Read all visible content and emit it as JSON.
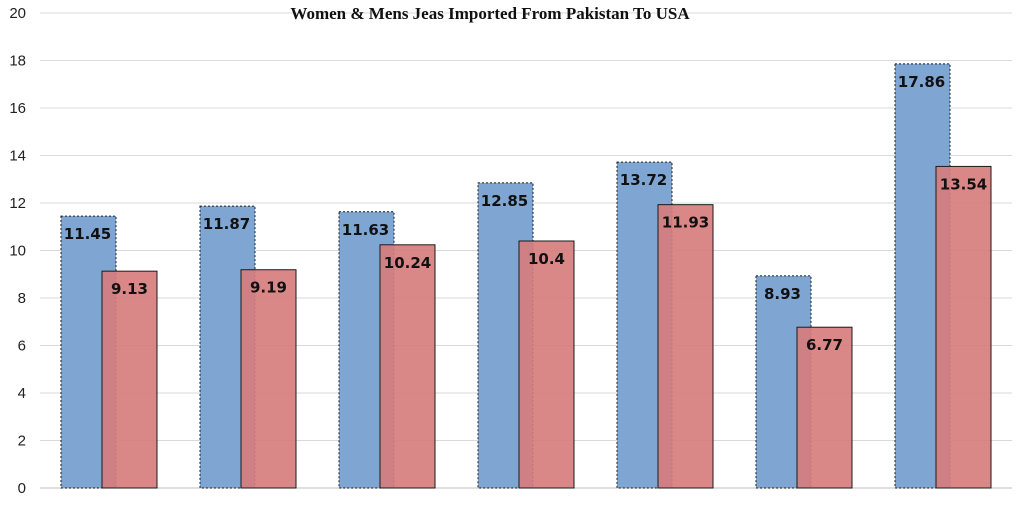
{
  "chart_data": {
    "type": "bar",
    "title": "Women & Mens Jeas Imported From Pakistan To USA",
    "xlabel": "",
    "ylabel": "",
    "ylim": [
      0,
      20
    ],
    "yticks": [
      0,
      2,
      4,
      6,
      8,
      10,
      12,
      14,
      16,
      18,
      20
    ],
    "grid": true,
    "legend": "none",
    "categories": [
      "",
      "",
      "",
      "",
      "",
      "",
      ""
    ],
    "series": [
      {
        "values": [
          11.45,
          11.87,
          11.63,
          12.85,
          13.72,
          8.93,
          17.86
        ],
        "labels": [
          "11.45",
          "11.87",
          "11.63",
          "12.85",
          "13.72",
          "8.93",
          "17.86"
        ],
        "color": "#7fa6d3"
      },
      {
        "values": [
          9.13,
          9.19,
          10.24,
          10.4,
          11.93,
          6.77,
          13.54
        ],
        "labels": [
          "9.13",
          "9.19",
          "10.24",
          "10.4",
          "11.93",
          "6.77",
          "13.54"
        ],
        "color": "#d67d7d"
      }
    ]
  }
}
